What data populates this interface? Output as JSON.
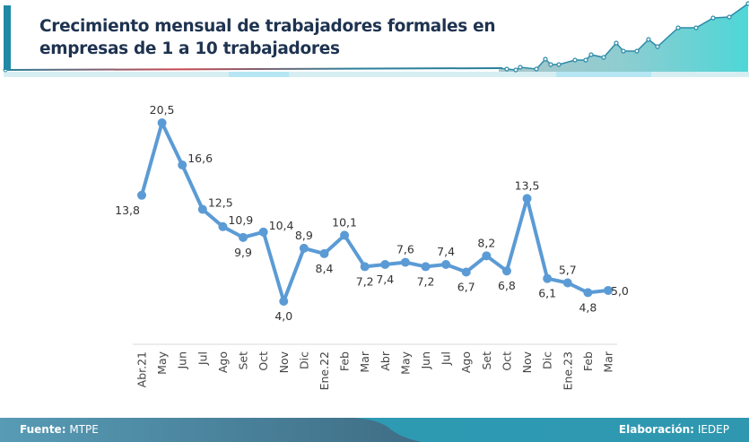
{
  "header": {
    "title_line1": "Crecimiento mensual de trabajadores formales en",
    "title_line2": "empresas de 1 a 10 trabajadores"
  },
  "footer": {
    "source_label": "Fuente:",
    "source_value": "MTPE",
    "credit_label": "Elaboración:",
    "credit_value": "IEDEP"
  },
  "colors": {
    "line": "#5b9bd5",
    "title": "#1e3350",
    "accent": "#1f8aa6",
    "footer_dark": "#416e86",
    "footer_light": "#6dd3dc"
  },
  "chart_data": {
    "type": "line",
    "title": "Crecimiento mensual de trabajadores formales en empresas de 1 a 10 trabajadores",
    "xlabel": "",
    "ylabel": "",
    "categories": [
      "Abr.21",
      "May",
      "Jun",
      "Jul",
      "Ago",
      "Set",
      "Oct",
      "Nov",
      "Dic",
      "Ene.22",
      "Feb",
      "Mar",
      "Abr",
      "May",
      "Jun",
      "Jul",
      "Ago",
      "Set",
      "Oct",
      "Nov",
      "Dic",
      "Ene.23",
      "Feb",
      "Mar"
    ],
    "series": [
      {
        "name": "Crecimiento mensual",
        "values": [
          13.8,
          20.5,
          16.6,
          12.5,
          10.9,
          9.9,
          10.4,
          4.0,
          8.9,
          8.4,
          10.1,
          7.2,
          7.4,
          7.6,
          7.2,
          7.4,
          6.7,
          8.2,
          6.8,
          13.5,
          6.1,
          5.7,
          4.8,
          5.0
        ],
        "labels": [
          "13,8",
          "20,5",
          "16,6",
          "12,5",
          "10,9",
          "9,9",
          "10,4",
          "4,0",
          "8,9",
          "8,4",
          "10,1",
          "7,2",
          "7,4",
          "7,6",
          "7,2",
          "7,4",
          "6,7",
          "8,2",
          "6,8",
          "13,5",
          "6,1",
          "5,7",
          "4,8",
          "5,0"
        ],
        "label_positions": [
          "left",
          "above",
          "right",
          "right",
          "right",
          "below",
          "right",
          "below",
          "above",
          "below",
          "above",
          "below",
          "below",
          "above",
          "below",
          "above",
          "below",
          "above",
          "below",
          "above",
          "below",
          "above",
          "below",
          "right"
        ]
      }
    ],
    "ylim": [
      0,
      22
    ],
    "grid": false,
    "legend": "none",
    "decimal_separator": ","
  }
}
